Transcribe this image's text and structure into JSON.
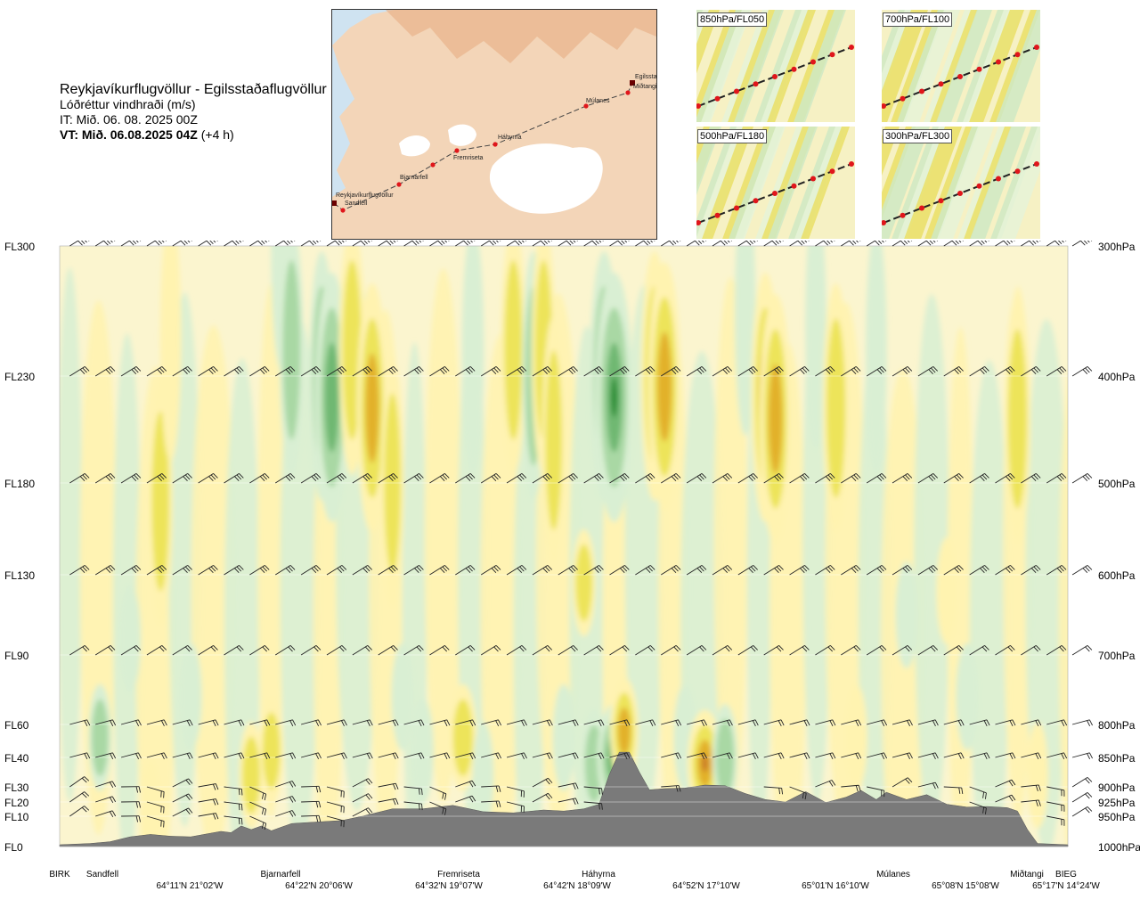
{
  "title": {
    "route": "Reykjavíkurflugvöllur - Egilsstaðaflugvöllur",
    "param": "Lóðréttur vindhraði (m/s)",
    "issue": "IT: Mið. 06. 08. 2025 00Z",
    "valid_bold": "VT: Mið. 06.08.2025 04Z",
    "valid_suffix": "(+4 h)"
  },
  "map": {
    "stations": [
      "Reykjavíkurflugvöllur",
      "Sandfell",
      "Bjarnarfell",
      "Fremriseta",
      "Háhyrna",
      "Múlanes",
      "Miðtangi",
      "Egilssta"
    ],
    "colors": {
      "land": "#f3d5b8",
      "relief": "#e7ad82",
      "glacier": "#ffffff",
      "sea": "#cfe3f1",
      "route": "#444444",
      "point": "#e0161b"
    }
  },
  "minimaps": [
    {
      "label": "850hPa/FL050"
    },
    {
      "label": "700hPa/FL100"
    },
    {
      "label": "500hPa/FL180"
    },
    {
      "label": "300hPa/FL300"
    }
  ],
  "chart_data": {
    "type": "heatmap",
    "title": "",
    "variable": "Lóðréttur vindhraði (m/s)",
    "y_left_labels": [
      "FL300",
      "FL230",
      "FL180",
      "FL130",
      "FL90",
      "FL60",
      "FL40",
      "FL30",
      "FL20",
      "FL10",
      "FL0"
    ],
    "y_right_labels": [
      "300hPa",
      "400hPa",
      "500hPa",
      "600hPa",
      "700hPa",
      "800hPa",
      "850hPa",
      "900hPa",
      "925hPa",
      "950hPa",
      "1000hPa"
    ],
    "pressure_levels_hpa": [
      300,
      400,
      500,
      600,
      700,
      800,
      850,
      900,
      925,
      950,
      1000
    ],
    "ylim_hpa": [
      1000,
      300
    ],
    "x_stations": [
      "BIRK",
      "Sandfell",
      "Bjarnarfell",
      "Fremriseta",
      "Háhyrna",
      "Múlanes",
      "Miðtangi",
      "BIEG"
    ],
    "x_coords": [
      "64°11'N 21°02'W",
      "64°22'N 20°06'W",
      "64°32'N 19°07'W",
      "64°42'N 18°09'W",
      "64°52'N 17°10'W",
      "65°01'N 16°10'W",
      "65°08'N 15°08'W",
      "65°17'N 14°24'W"
    ],
    "colors": {
      "down_weak": "#d9efd3",
      "down_mid": "#a9d8a4",
      "down_strong": "#6fb872",
      "down_max": "#1e8a2c",
      "up_weak": "#fff3b0",
      "up_mid": "#ede45a",
      "up_strong": "#e2b12a",
      "up_max": "#c8752a",
      "terrain": "#7a7a7a",
      "background": "#fbf5cf"
    },
    "terrain_profile_hpa": [
      {
        "x": 0,
        "p": 997
      },
      {
        "x": 3,
        "p": 995
      },
      {
        "x": 5,
        "p": 992
      },
      {
        "x": 7,
        "p": 984
      },
      {
        "x": 9,
        "p": 980
      },
      {
        "x": 11,
        "p": 983
      },
      {
        "x": 13,
        "p": 984
      },
      {
        "x": 15,
        "p": 978
      },
      {
        "x": 16,
        "p": 975
      },
      {
        "x": 17,
        "p": 977
      },
      {
        "x": 18,
        "p": 966
      },
      {
        "x": 19,
        "p": 972
      },
      {
        "x": 20,
        "p": 966
      },
      {
        "x": 21,
        "p": 974
      },
      {
        "x": 22,
        "p": 968
      },
      {
        "x": 23,
        "p": 962
      },
      {
        "x": 25,
        "p": 960
      },
      {
        "x": 28,
        "p": 957
      },
      {
        "x": 30,
        "p": 950
      },
      {
        "x": 33,
        "p": 937
      },
      {
        "x": 36,
        "p": 937
      },
      {
        "x": 39,
        "p": 931
      },
      {
        "x": 42,
        "p": 942
      },
      {
        "x": 45,
        "p": 944
      },
      {
        "x": 48,
        "p": 939
      },
      {
        "x": 50,
        "p": 941
      },
      {
        "x": 52,
        "p": 937
      },
      {
        "x": 53.5,
        "p": 929
      },
      {
        "x": 54.5,
        "p": 880
      },
      {
        "x": 55.5,
        "p": 842
      },
      {
        "x": 56.5,
        "p": 842
      },
      {
        "x": 57.5,
        "p": 875
      },
      {
        "x": 58.5,
        "p": 905
      },
      {
        "x": 60,
        "p": 903
      },
      {
        "x": 62,
        "p": 902
      },
      {
        "x": 64,
        "p": 897
      },
      {
        "x": 66,
        "p": 898
      },
      {
        "x": 68,
        "p": 911
      },
      {
        "x": 70,
        "p": 921
      },
      {
        "x": 72,
        "p": 925
      },
      {
        "x": 74,
        "p": 908
      },
      {
        "x": 76,
        "p": 926
      },
      {
        "x": 78,
        "p": 917
      },
      {
        "x": 79.5,
        "p": 906
      },
      {
        "x": 81,
        "p": 921
      },
      {
        "x": 82,
        "p": 909
      },
      {
        "x": 84,
        "p": 921
      },
      {
        "x": 86,
        "p": 913
      },
      {
        "x": 88,
        "p": 929
      },
      {
        "x": 90,
        "p": 934
      },
      {
        "x": 92,
        "p": 933
      },
      {
        "x": 94,
        "p": 935
      },
      {
        "x": 95,
        "p": 941
      },
      {
        "x": 96,
        "p": 972
      },
      {
        "x": 97,
        "p": 995
      },
      {
        "x": 100,
        "p": 997
      }
    ],
    "vertical_velocity_cells": [
      {
        "x": 9,
        "p": 945,
        "v": 0.4
      },
      {
        "x": 10,
        "p": 520,
        "v": 0.6
      },
      {
        "x": 11,
        "p": 370,
        "v": 0.3
      },
      {
        "x": 4,
        "p": 820,
        "v": -0.5
      },
      {
        "x": 7,
        "p": 680,
        "v": -0.3
      },
      {
        "x": 13,
        "p": 760,
        "v": -0.4
      },
      {
        "x": 19,
        "p": 880,
        "v": 0.6
      },
      {
        "x": 21,
        "p": 840,
        "v": 0.6
      },
      {
        "x": 22,
        "p": 300,
        "v": -0.3
      },
      {
        "x": 23,
        "p": 380,
        "v": -0.6
      },
      {
        "x": 26,
        "p": 400,
        "v": -0.7
      },
      {
        "x": 27,
        "p": 420,
        "v": -1.4
      },
      {
        "x": 29,
        "p": 380,
        "v": 0.8
      },
      {
        "x": 31,
        "p": 430,
        "v": 1.2
      },
      {
        "x": 33,
        "p": 500,
        "v": 0.5
      },
      {
        "x": 34,
        "p": 760,
        "v": -0.4
      },
      {
        "x": 36,
        "p": 840,
        "v": -0.4
      },
      {
        "x": 40,
        "p": 820,
        "v": 0.9
      },
      {
        "x": 41,
        "p": 380,
        "v": -0.4
      },
      {
        "x": 42,
        "p": 880,
        "v": -0.3
      },
      {
        "x": 45,
        "p": 380,
        "v": 0.7
      },
      {
        "x": 47,
        "p": 400,
        "v": -0.5
      },
      {
        "x": 48,
        "p": 380,
        "v": 0.6
      },
      {
        "x": 49,
        "p": 460,
        "v": 0.5
      },
      {
        "x": 50,
        "p": 820,
        "v": -0.4
      },
      {
        "x": 52,
        "p": 610,
        "v": 0.5
      },
      {
        "x": 53,
        "p": 860,
        "v": -0.7
      },
      {
        "x": 54,
        "p": 400,
        "v": -1.0
      },
      {
        "x": 55,
        "p": 420,
        "v": -1.8
      },
      {
        "x": 55,
        "p": 850,
        "v": -1.5
      },
      {
        "x": 56,
        "p": 810,
        "v": 1.0
      },
      {
        "x": 59,
        "p": 400,
        "v": 0.9
      },
      {
        "x": 60,
        "p": 410,
        "v": 1.4
      },
      {
        "x": 62,
        "p": 820,
        "v": -0.4
      },
      {
        "x": 64,
        "p": 860,
        "v": 1.6
      },
      {
        "x": 66,
        "p": 850,
        "v": -0.7
      },
      {
        "x": 68,
        "p": 350,
        "v": -0.3
      },
      {
        "x": 70,
        "p": 420,
        "v": 1.0
      },
      {
        "x": 71,
        "p": 440,
        "v": 1.3
      },
      {
        "x": 75,
        "p": 360,
        "v": -0.3
      },
      {
        "x": 77,
        "p": 430,
        "v": 0.8
      },
      {
        "x": 79,
        "p": 820,
        "v": 0.4
      },
      {
        "x": 81,
        "p": 380,
        "v": -0.3
      },
      {
        "x": 84,
        "p": 650,
        "v": -0.4
      },
      {
        "x": 88,
        "p": 620,
        "v": 0.3
      },
      {
        "x": 90,
        "p": 760,
        "v": -0.4
      },
      {
        "x": 95,
        "p": 440,
        "v": 0.8
      },
      {
        "x": 97,
        "p": 880,
        "v": 0.3
      }
    ]
  }
}
